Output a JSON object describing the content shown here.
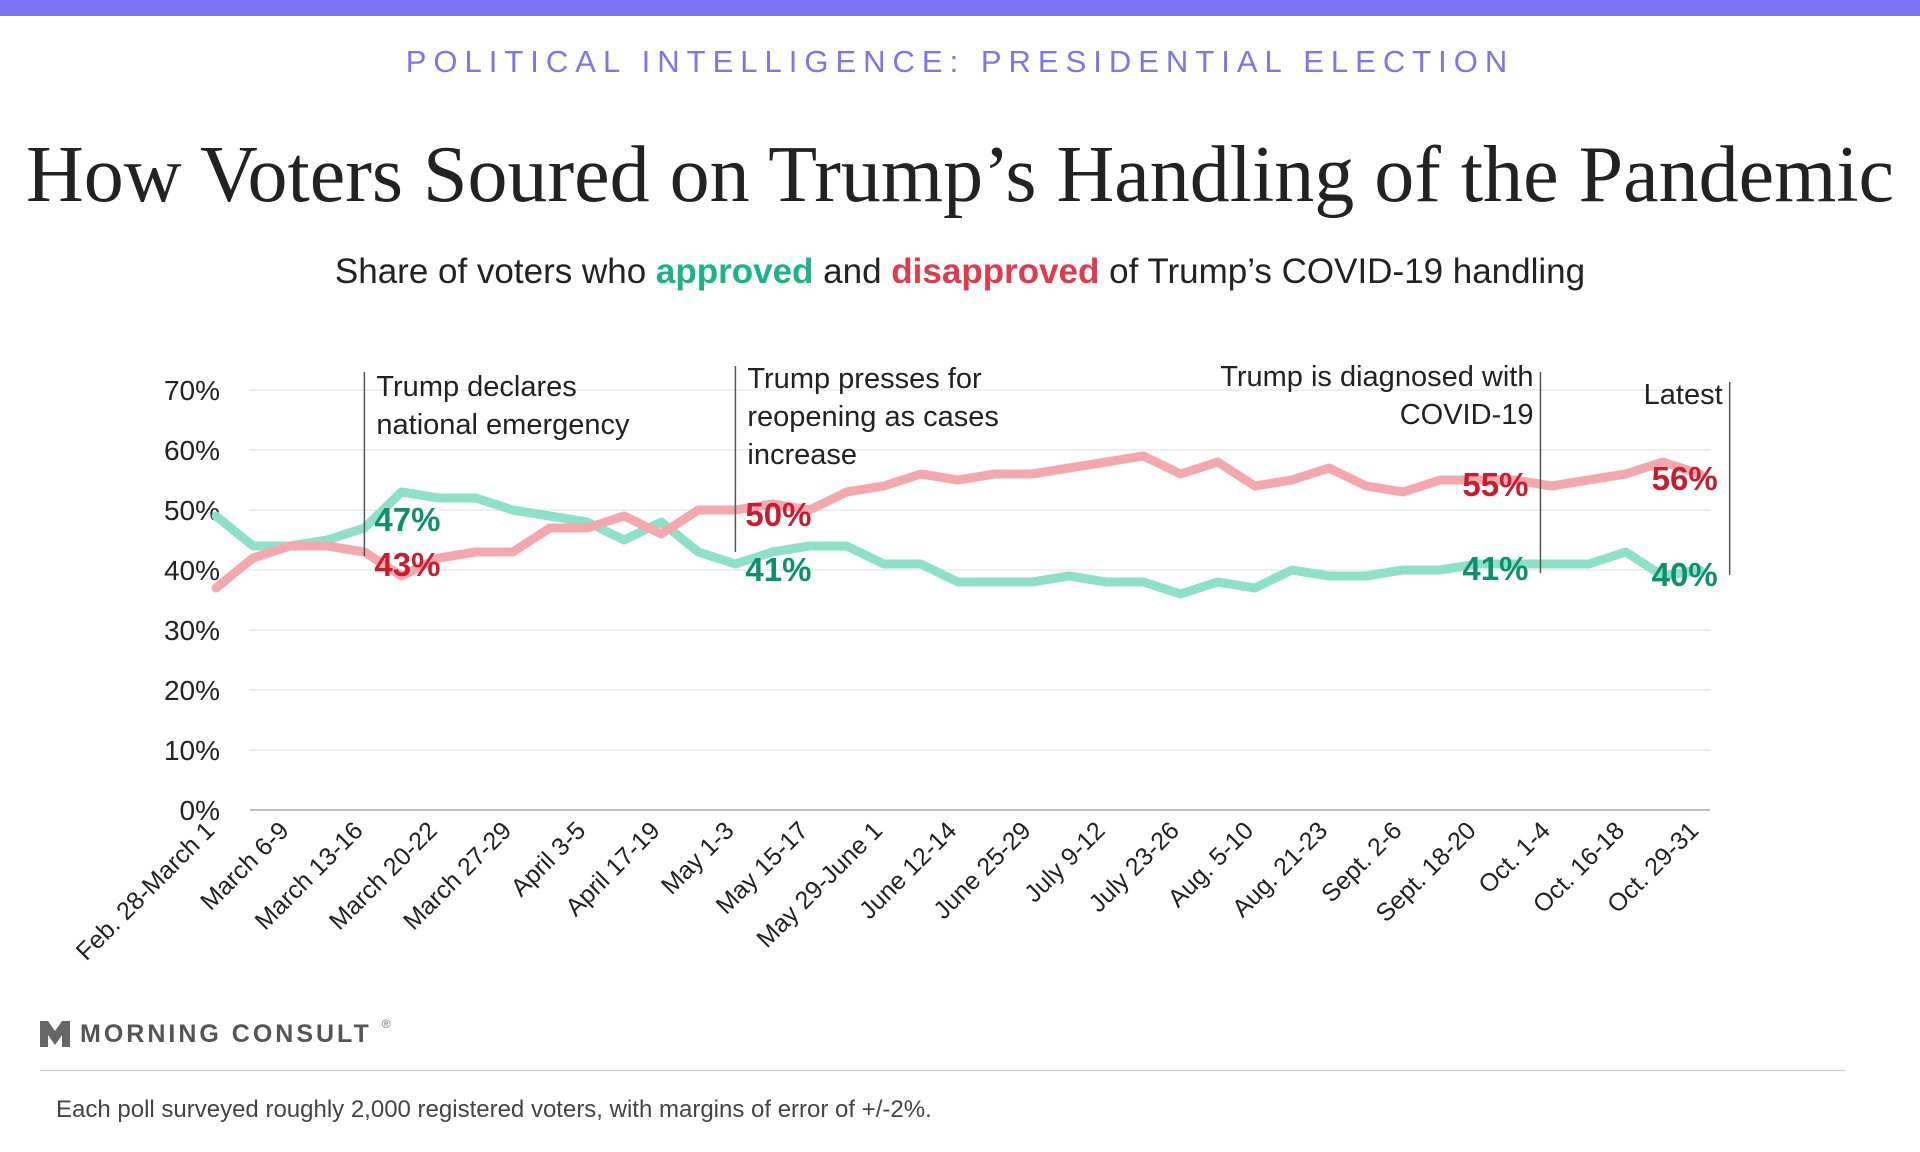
{
  "header": {
    "kicker": "POLITICAL INTELLIGENCE: PRESIDENTIAL ELECTION",
    "title": "How Voters Soured on Trump’s Handling of the Pandemic",
    "subtitle_pre": "Share of voters who ",
    "subtitle_approved": "approved",
    "subtitle_mid": " and ",
    "subtitle_disapproved": "disapproved",
    "subtitle_post": " of Trump’s COVID-19 handling"
  },
  "chart_data": {
    "type": "line",
    "ylim": [
      0,
      70
    ],
    "y_ticks": [
      0,
      10,
      20,
      30,
      40,
      50,
      60,
      70
    ],
    "y_tick_labels": [
      "0%",
      "10%",
      "20%",
      "30%",
      "40%",
      "50%",
      "60%",
      "70%"
    ],
    "x_tick_labels": [
      "Feb. 28-March 1",
      "March 6-9",
      "March 13-16",
      "March 20-22",
      "March 27-29",
      "April 3-5",
      "April 17-19",
      "May 1-3",
      "May 15-17",
      "May 29-June 1",
      "June 12-14",
      "June 25-29",
      "July 9-12",
      "July 23-26",
      "Aug. 5-10",
      "Aug. 21-23",
      "Sept. 2-6",
      "Sept. 18-20",
      "Oct. 1-4",
      "Oct. 16-18",
      "Oct. 29-31"
    ],
    "x_tick_positions": [
      0,
      2,
      4,
      6,
      8,
      10,
      12,
      14,
      16,
      18,
      20,
      22,
      24,
      26,
      28,
      30,
      32,
      34,
      36,
      38,
      40
    ],
    "grid": true,
    "series": [
      {
        "name": "approved",
        "color": "#8fe0c8",
        "values": [
          49,
          44,
          44,
          45,
          47,
          53,
          52,
          52,
          50,
          49,
          48,
          45,
          48,
          43,
          41,
          43,
          44,
          44,
          41,
          41,
          38,
          38,
          38,
          39,
          38,
          38,
          36,
          38,
          37,
          40,
          39,
          39,
          40,
          40,
          41,
          41,
          41,
          41,
          43,
          39,
          40
        ]
      },
      {
        "name": "disapproved",
        "color": "#f3a8ae",
        "values": [
          37,
          42,
          44,
          44,
          43,
          39,
          42,
          43,
          43,
          47,
          47,
          49,
          46,
          50,
          50,
          51,
          50,
          53,
          54,
          56,
          55,
          56,
          56,
          57,
          58,
          59,
          56,
          58,
          54,
          55,
          57,
          54,
          53,
          55,
          55,
          55,
          54,
          55,
          56,
          58,
          56
        ]
      }
    ],
    "annotations": [
      {
        "label": "Trump declares national emergency",
        "x_index": 4,
        "lines": [
          "Trump declares",
          "national emergency"
        ],
        "approve_label": "47%",
        "disapprove_label": "43%"
      },
      {
        "label": "Trump presses for reopening as cases increase",
        "x_index": 14,
        "lines": [
          "Trump presses for",
          "reopening as cases",
          "increase"
        ],
        "approve_label": "41%",
        "disapprove_label": "50%"
      },
      {
        "label": "Trump is diagnosed with COVID-19",
        "x_index": 35.7,
        "lines": [
          "Trump is diagnosed with",
          "COVID-19"
        ],
        "approve_label": "41%",
        "disapprove_label": "55%"
      },
      {
        "label": "Latest",
        "x_index": 40.8,
        "lines": [
          "Latest"
        ],
        "approve_label": "40%",
        "disapprove_label": "56%"
      }
    ],
    "label_colors": {
      "approve": "#0e8f6e",
      "disapprove": "#c81d2e"
    }
  },
  "logo": {
    "text": "MORNING CONSULT",
    "mark": "®"
  },
  "footnote": "Each poll surveyed roughly 2,000 registered voters, with margins of error of +/-2%."
}
